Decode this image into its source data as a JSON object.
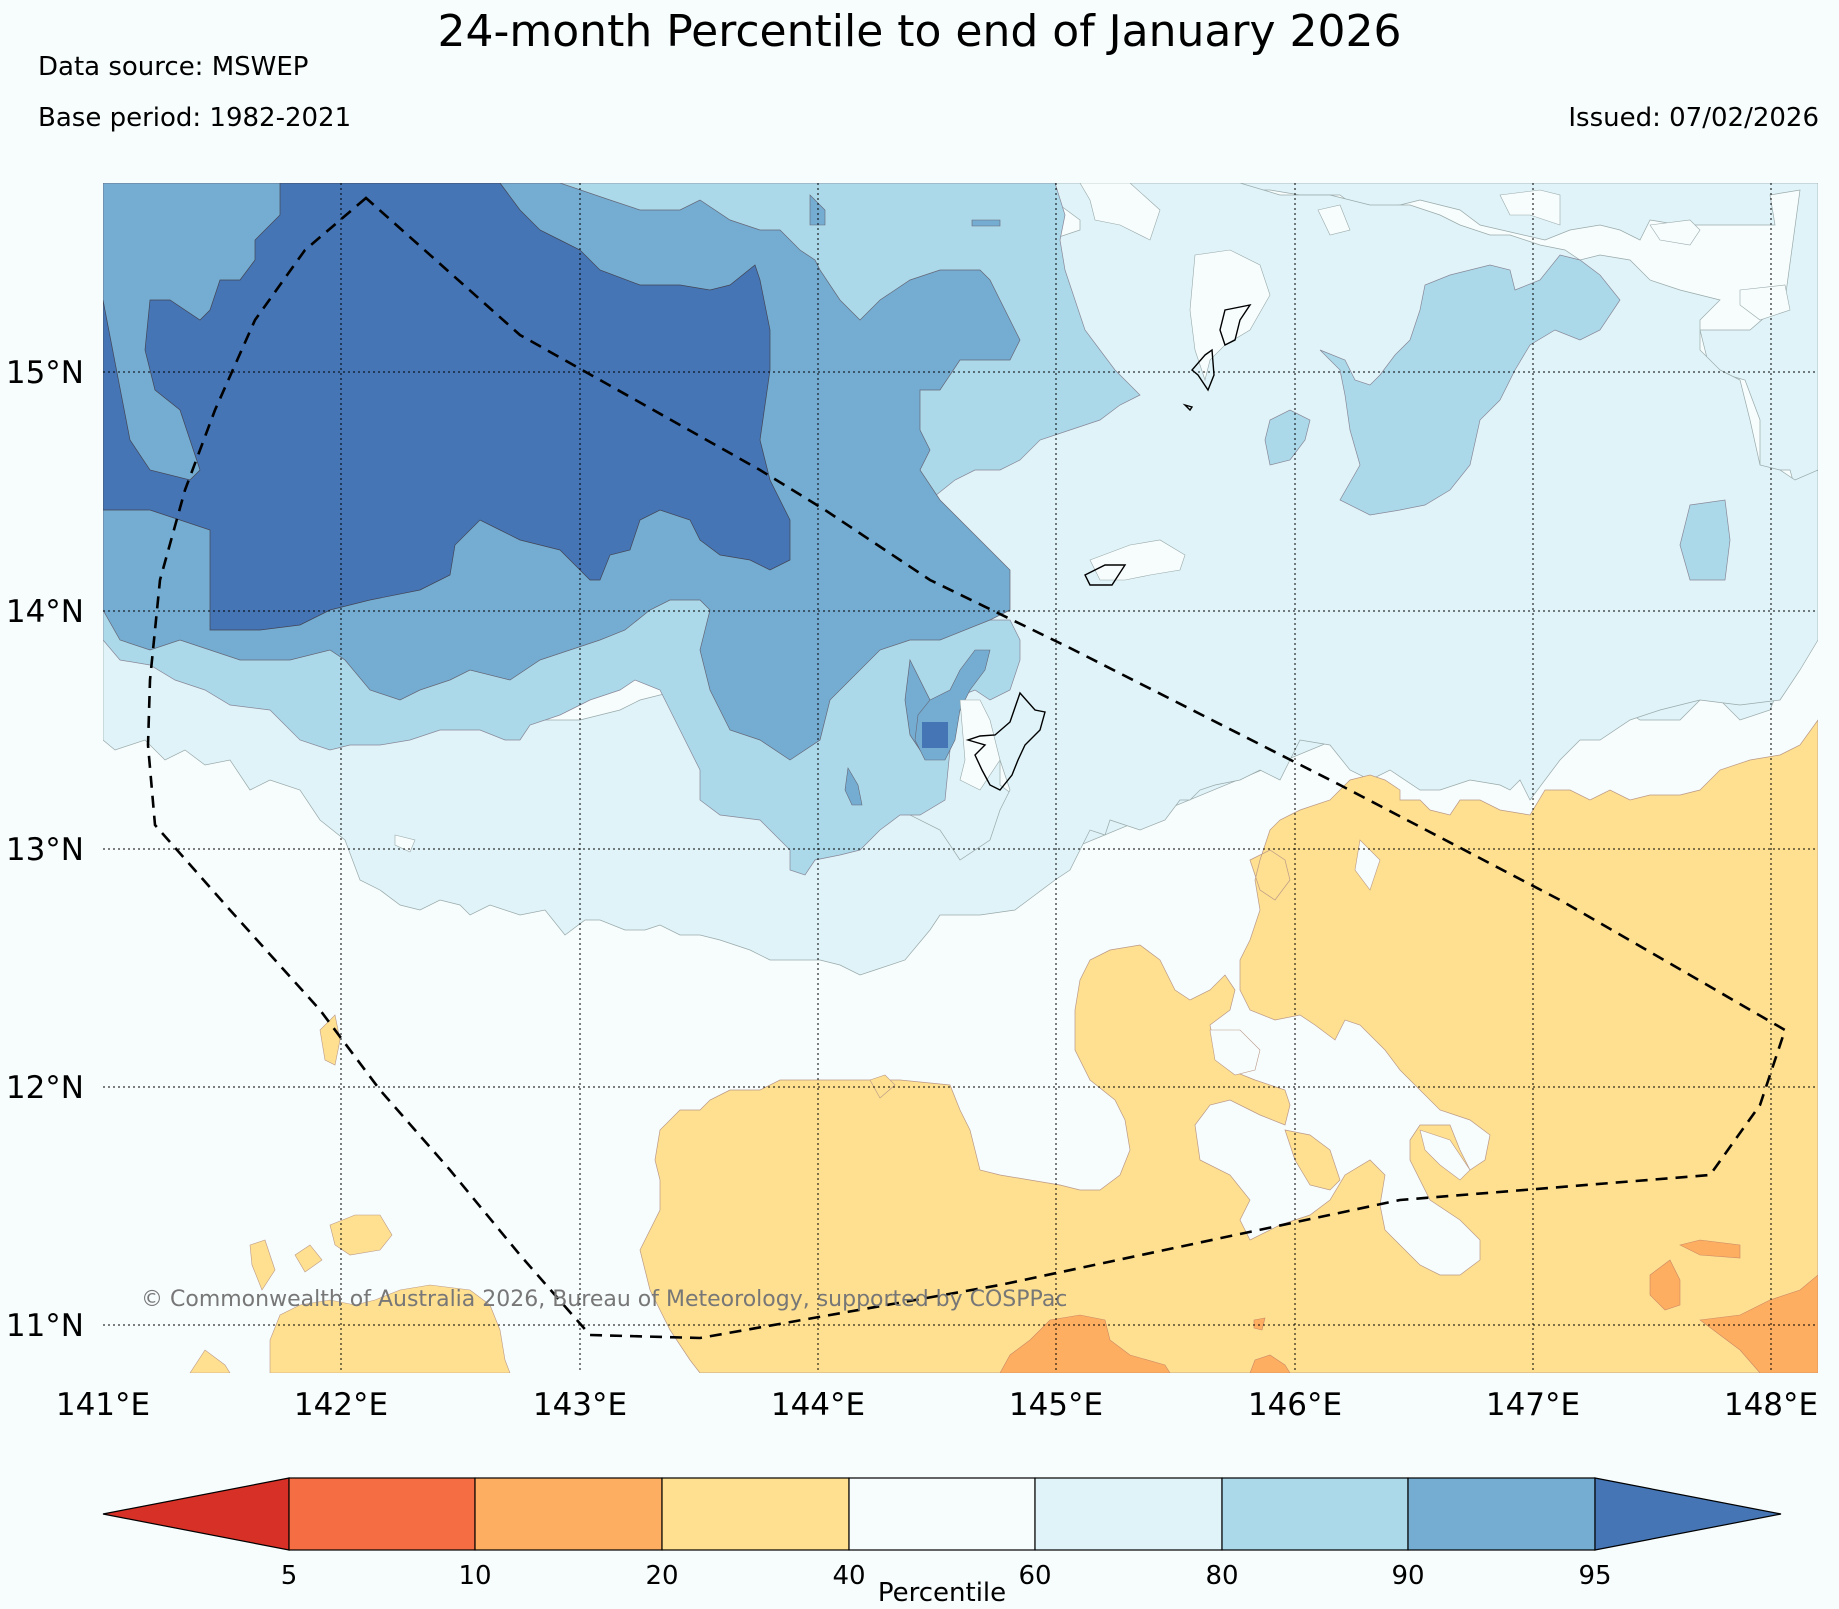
{
  "title": "24-month Percentile to end of January 2026",
  "data_source": "Data source: MSWEP",
  "base_period": "Base period: 1982-2021",
  "issued": "Issued: 07/02/2026",
  "copyright": "© Commonwealth of Australia 2026, Bureau of Meteorology, supported by COSPPac",
  "lon_ticks": [
    "141°E",
    "142°E",
    "143°E",
    "144°E",
    "145°E",
    "146°E",
    "147°E",
    "148°E"
  ],
  "lat_ticks": [
    "15°N",
    "14°N",
    "13°N",
    "12°N",
    "11°N"
  ],
  "colorbar": {
    "title": "Percentile",
    "tick_labels": [
      "5",
      "10",
      "20",
      "40",
      "60",
      "80",
      "90",
      "95"
    ],
    "colors": [
      "#d73027",
      "#f46d43",
      "#fdae61",
      "#fee090",
      "#f7fcfd",
      "#e0f3f8",
      "#abd9e9",
      "#74add1",
      "#4575b4"
    ]
  },
  "colors": {
    "p95": "#4575b4",
    "p90": "#74add1",
    "p80": "#abd9e9",
    "p60": "#e0f3f8",
    "p40": "#f7fcfd",
    "p20": "#fee090",
    "p10": "#fdae61",
    "p5": "#f46d43"
  }
}
